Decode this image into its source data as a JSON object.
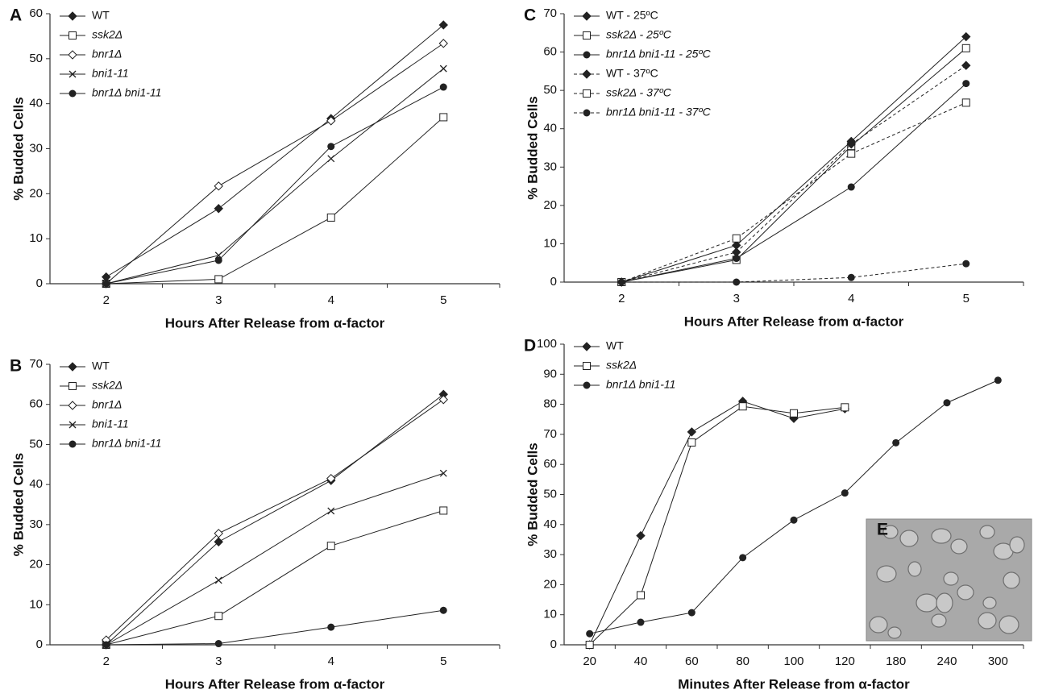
{
  "chart_data": [
    {
      "type": "line",
      "panel_label": "A",
      "x_label": "Hours After Release from α-factor",
      "y_label": "% Budded Cells",
      "categories": [
        "2",
        "3",
        "4",
        "5"
      ],
      "ylim": [
        0,
        60
      ],
      "yticks": [
        0,
        10,
        20,
        30,
        40,
        50,
        60
      ],
      "grid": false,
      "legend": "upper left",
      "series": [
        {
          "name": "WT",
          "color": "#222222",
          "marker": "filled-diamond",
          "linestyle": "solid",
          "italic": false,
          "values": [
            1.5,
            16.7,
            36.7,
            57.5
          ]
        },
        {
          "name": "ssk2Δ",
          "color": "#222222",
          "marker": "open-square",
          "linestyle": "solid",
          "italic": true,
          "values": [
            0,
            1,
            14.7,
            37
          ]
        },
        {
          "name": "bnr1Δ",
          "color": "#222222",
          "marker": "open-diamond",
          "linestyle": "solid",
          "italic": true,
          "values": [
            0,
            21.7,
            36.2,
            53.4
          ]
        },
        {
          "name": "bni1-11",
          "color": "#222222",
          "marker": "cross",
          "linestyle": "solid",
          "italic": true,
          "values": [
            0,
            6.3,
            27.8,
            47.8
          ]
        },
        {
          "name": "bnr1Δ bni1-11",
          "color": "#222222",
          "marker": "filled-circle",
          "linestyle": "solid",
          "italic": true,
          "values": [
            0,
            5.2,
            30.5,
            43.7
          ]
        }
      ]
    },
    {
      "type": "line",
      "panel_label": "B",
      "x_label": "Hours After Release from α-factor",
      "y_label": "% Budded Cells",
      "categories": [
        "2",
        "3",
        "4",
        "5"
      ],
      "ylim": [
        0,
        70
      ],
      "yticks": [
        0,
        10,
        20,
        30,
        40,
        50,
        60,
        70
      ],
      "grid": false,
      "legend": "upper left",
      "series": [
        {
          "name": "WT",
          "color": "#222222",
          "marker": "filled-diamond",
          "linestyle": "solid",
          "italic": false,
          "values": [
            0,
            25.7,
            41,
            62.5
          ]
        },
        {
          "name": "ssk2Δ",
          "color": "#222222",
          "marker": "open-square",
          "linestyle": "solid",
          "italic": true,
          "values": [
            0,
            7.2,
            24.7,
            33.5
          ]
        },
        {
          "name": "bnr1Δ",
          "color": "#222222",
          "marker": "open-diamond",
          "linestyle": "solid",
          "italic": true,
          "values": [
            1.2,
            27.8,
            41.5,
            61.2
          ]
        },
        {
          "name": "bni1-11",
          "color": "#222222",
          "marker": "cross",
          "linestyle": "solid",
          "italic": true,
          "values": [
            0,
            16.1,
            33.4,
            42.8
          ]
        },
        {
          "name": "bnr1Δ bni1-11",
          "color": "#222222",
          "marker": "filled-circle",
          "linestyle": "solid",
          "italic": true,
          "values": [
            0,
            0.3,
            4.4,
            8.6
          ]
        }
      ]
    },
    {
      "type": "line",
      "panel_label": "C",
      "x_label": "Hours After Release from α-factor",
      "y_label": "% Budded Cells",
      "categories": [
        "2",
        "3",
        "4",
        "5"
      ],
      "ylim": [
        0,
        70
      ],
      "yticks": [
        0,
        10,
        20,
        30,
        40,
        50,
        60,
        70
      ],
      "grid": false,
      "legend": "upper left",
      "series": [
        {
          "name": "WT - 25ºC",
          "color": "#222222",
          "marker": "filled-diamond",
          "linestyle": "solid",
          "italic": false,
          "values": [
            0,
            9.6,
            36.7,
            64
          ]
        },
        {
          "name": "ssk2Δ - 25ºC",
          "color": "#222222",
          "marker": "open-square",
          "linestyle": "solid",
          "italic": true,
          "values": [
            0,
            5.8,
            35.5,
            61
          ]
        },
        {
          "name": "bnr1Δ bni1-11 - 25ºC",
          "color": "#222222",
          "marker": "filled-circle",
          "linestyle": "solid",
          "italic": true,
          "values": [
            0,
            6.2,
            24.8,
            51.8
          ]
        },
        {
          "name": "WT - 37ºC",
          "color": "#222222",
          "marker": "filled-diamond",
          "linestyle": "dashed",
          "italic": false,
          "values": [
            0,
            7.8,
            36,
            56.5
          ]
        },
        {
          "name": "ssk2Δ - 37ºC",
          "color": "#222222",
          "marker": "open-square",
          "linestyle": "dashed",
          "italic": true,
          "values": [
            0,
            11.4,
            33.5,
            46.8
          ]
        },
        {
          "name": "bnr1Δ bni1-11 - 37ºC",
          "color": "#222222",
          "marker": "filled-circle",
          "linestyle": "dashed",
          "italic": true,
          "values": [
            0,
            0,
            1.2,
            4.8
          ]
        }
      ]
    },
    {
      "type": "line",
      "panel_label": "D",
      "x_label": "Minutes After Release from α-factor",
      "y_label": "% Budded Cells",
      "categories": [
        "20",
        "40",
        "60",
        "80",
        "100",
        "120",
        "180",
        "240",
        "300"
      ],
      "ylim": [
        0,
        100
      ],
      "yticks": [
        0,
        10,
        20,
        30,
        40,
        50,
        60,
        70,
        80,
        90,
        100
      ],
      "grid": false,
      "legend": "upper left",
      "series": [
        {
          "name": "WT",
          "color": "#222222",
          "marker": "filled-diamond",
          "linestyle": "solid",
          "italic": false,
          "values": [
            0,
            36.3,
            70.8,
            81,
            75.3,
            78.5,
            null,
            null,
            null
          ]
        },
        {
          "name": "ssk2Δ",
          "color": "#222222",
          "marker": "open-square",
          "linestyle": "solid",
          "italic": true,
          "values": [
            0,
            16.5,
            67.3,
            79.3,
            77,
            79,
            null,
            null,
            null
          ]
        },
        {
          "name": "bnr1Δ bni1-11",
          "color": "#222222",
          "marker": "filled-circle",
          "linestyle": "solid",
          "italic": true,
          "values": [
            3.7,
            7.5,
            10.7,
            29,
            41.5,
            50.5,
            67.2,
            80.5,
            88
          ]
        }
      ]
    }
  ],
  "inset": {
    "label": "E"
  }
}
